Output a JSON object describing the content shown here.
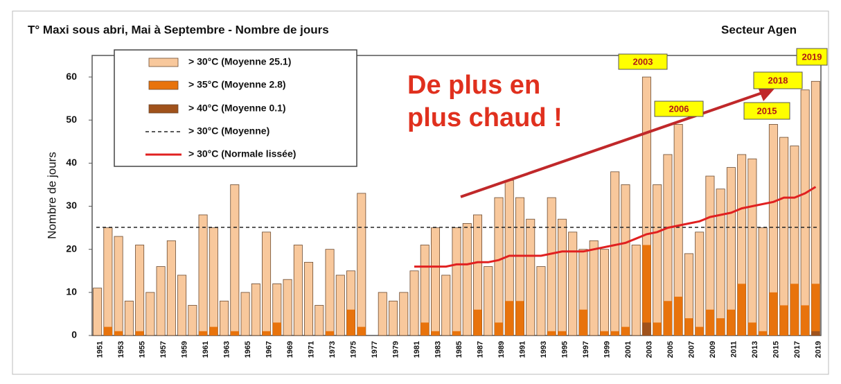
{
  "chart_data": {
    "type": "bar",
    "title": "T° Maxi sous abri, Mai à Septembre - Nombre de jours",
    "subtitle": "Secteur Agen",
    "y_label": "Nombre de jours",
    "categories": [
      "1951",
      null,
      "1953",
      null,
      "1955",
      null,
      "1957",
      null,
      "1959",
      null,
      "1961",
      null,
      "1963",
      null,
      "1965",
      null,
      "1967",
      null,
      "1969",
      null,
      "1971",
      null,
      "1973",
      null,
      "1975",
      null,
      "1977",
      null,
      "1979",
      null,
      "1981",
      null,
      "1983",
      null,
      "1985",
      null,
      "1987",
      null,
      "1989",
      null,
      "1991",
      null,
      "1993",
      null,
      "1995",
      null,
      "1997",
      null,
      "1999",
      null,
      "2001",
      null,
      "2003",
      null,
      "2005",
      null,
      "2007",
      null,
      "2009",
      null,
      "2011",
      null,
      "2013",
      null,
      "2015",
      null,
      "2017",
      null,
      "2019"
    ],
    "ylim": [
      0,
      65
    ],
    "yticks": [
      0,
      10,
      20,
      30,
      40,
      50,
      60
    ],
    "series": [
      {
        "name": "> 30°C (Moyenne 25.1)",
        "color": "#f8c89c",
        "values": [
          11,
          25,
          23,
          8,
          21,
          10,
          16,
          22,
          14,
          7,
          28,
          25,
          8,
          35,
          10,
          12,
          24,
          12,
          13,
          21,
          17,
          7,
          20,
          14,
          15,
          33,
          null,
          10,
          8,
          10,
          15,
          21,
          25,
          14,
          25,
          26,
          28,
          16,
          32,
          36,
          32,
          27,
          16,
          32,
          27,
          24,
          20,
          22,
          20,
          38,
          35,
          21,
          60,
          35,
          42,
          49,
          19,
          24,
          37,
          34,
          39,
          42,
          41,
          25,
          49,
          46,
          44,
          57,
          59
        ]
      },
      {
        "name": "> 35°C (Moyenne 2.8)",
        "color": "#e8730c",
        "values": [
          0,
          2,
          1,
          0,
          1,
          0,
          0,
          0,
          0,
          0,
          1,
          2,
          0,
          1,
          0,
          0,
          1,
          3,
          0,
          0,
          0,
          0,
          1,
          0,
          6,
          2,
          null,
          0,
          0,
          0,
          0,
          3,
          1,
          0,
          1,
          0,
          6,
          0,
          3,
          8,
          8,
          0,
          0,
          1,
          1,
          0,
          6,
          0,
          1,
          1,
          2,
          0,
          21,
          3,
          8,
          9,
          4,
          2,
          6,
          4,
          6,
          12,
          3,
          1,
          10,
          7,
          12,
          7,
          12
        ]
      },
      {
        "name": "> 40°C (Moyenne 0.1)",
        "color": "#a0521b",
        "values": [
          0,
          0,
          0,
          0,
          0,
          0,
          0,
          0,
          0,
          0,
          0,
          0,
          0,
          0,
          0,
          0,
          0,
          0,
          0,
          0,
          0,
          0,
          0,
          0,
          0,
          0,
          null,
          0,
          0,
          0,
          0,
          0,
          0,
          0,
          0,
          0,
          0,
          0,
          0,
          0,
          0,
          0,
          0,
          0,
          0,
          0,
          0,
          0,
          0,
          0,
          0,
          0,
          3,
          0,
          0,
          0,
          0,
          0,
          0,
          0,
          0,
          0,
          0,
          0,
          0,
          0,
          0,
          0,
          1
        ]
      },
      {
        "name": "> 30°C (Moyenne)",
        "color": "#222222",
        "value": 25.1
      },
      {
        "name": "> 30°C (Normale lissée)",
        "color": "#e02020",
        "values": [
          null,
          null,
          null,
          null,
          null,
          null,
          null,
          null,
          null,
          null,
          null,
          null,
          null,
          null,
          null,
          null,
          null,
          null,
          null,
          null,
          null,
          null,
          null,
          null,
          null,
          null,
          null,
          null,
          null,
          null,
          16,
          16,
          16,
          16,
          16.5,
          16.5,
          17,
          17,
          17.5,
          18.5,
          18.5,
          18.5,
          18.5,
          19,
          19.5,
          19.5,
          19.5,
          20,
          20.5,
          21,
          21.5,
          22.5,
          23.5,
          24,
          25,
          25.5,
          26,
          26.5,
          27.5,
          28,
          28.5,
          29.5,
          30,
          30.5,
          31,
          32,
          32,
          33,
          34.5
        ]
      }
    ],
    "annotations": [
      "2003",
      "2006",
      "2015",
      "2018",
      "2019",
      "De plus en",
      "plus chaud !"
    ]
  }
}
